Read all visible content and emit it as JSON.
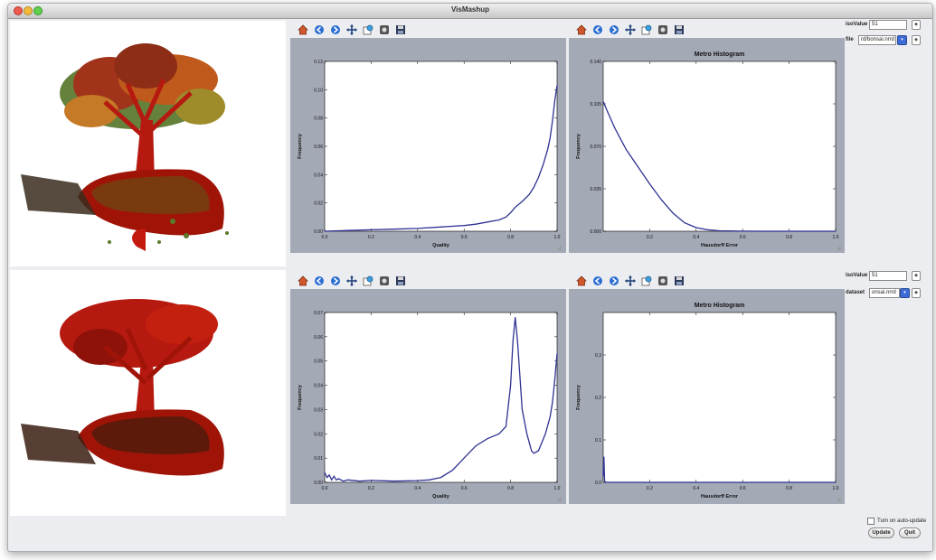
{
  "window": {
    "title": "VisMashup"
  },
  "toolbar_icons": [
    "home-icon",
    "back-icon",
    "forward-icon",
    "pan-icon",
    "zoom-icon",
    "configure-icon",
    "save-icon"
  ],
  "colors": {
    "panel_bg": "#a4a9b6",
    "curve": "#2e3192",
    "plot_bg": "#ffffff",
    "tree_red": "#b5190f"
  },
  "controls_top": {
    "isovalue_label": "isoValue",
    "isovalue_value": "51",
    "file_label": "file",
    "file_value": "rd/bonsai.nrrd"
  },
  "controls_bottom": {
    "isovalue_label": "isoValue",
    "isovalue_value": "51",
    "dataset_label": "dataset",
    "dataset_value": "onsai.nrrd"
  },
  "bottom_controls": {
    "auto_update_label": "Turn on auto-update",
    "update_button": "Update",
    "quit_button": "Quit"
  },
  "chart_data": [
    {
      "type": "line",
      "title": "",
      "xlabel": "Quality",
      "ylabel": "Frequency",
      "xlim": [
        0.0,
        1.0
      ],
      "ylim": [
        0.0,
        0.12
      ],
      "xticks": [
        "0.0",
        "0.2",
        "0.4",
        "0.6",
        "0.8",
        "1.0"
      ],
      "yticks": [
        "0.00",
        "0.02",
        "0.04",
        "0.06",
        "0.08",
        "0.10",
        "0.12"
      ],
      "x": [
        0.0,
        0.1,
        0.2,
        0.3,
        0.4,
        0.5,
        0.55,
        0.6,
        0.65,
        0.7,
        0.75,
        0.78,
        0.8,
        0.82,
        0.85,
        0.88,
        0.9,
        0.92,
        0.94,
        0.96,
        0.97,
        0.98,
        0.99,
        1.0
      ],
      "y": [
        0.0,
        0.0005,
        0.001,
        0.0015,
        0.002,
        0.003,
        0.0035,
        0.004,
        0.005,
        0.0065,
        0.008,
        0.01,
        0.013,
        0.017,
        0.021,
        0.026,
        0.031,
        0.038,
        0.047,
        0.058,
        0.066,
        0.078,
        0.092,
        0.103
      ],
      "grid": false
    },
    {
      "type": "line",
      "title": "Metro Histogram",
      "xlabel": "Hausdorff Error",
      "ylabel": "Frequency",
      "xlim": [
        0.0,
        1.0
      ],
      "ylim": [
        0.0,
        0.14
      ],
      "xticks": [
        "0.2",
        "0.4",
        "0.6",
        "0.8",
        "1.0"
      ],
      "yticks": [
        "0.000",
        "0.035",
        "0.070",
        "0.105",
        "0.140"
      ],
      "x": [
        0.0,
        0.02,
        0.05,
        0.08,
        0.1,
        0.15,
        0.2,
        0.25,
        0.3,
        0.35,
        0.4,
        0.45,
        0.5,
        0.6,
        0.7,
        0.8,
        0.9,
        1.0
      ],
      "y": [
        0.107,
        0.098,
        0.085,
        0.074,
        0.067,
        0.053,
        0.039,
        0.026,
        0.015,
        0.007,
        0.003,
        0.0012,
        0.0004,
        0.0001,
        0.0,
        0.0,
        0.0,
        0.0
      ],
      "grid": false
    },
    {
      "type": "line",
      "title": "",
      "xlabel": "Quality",
      "ylabel": "Frequency",
      "xlim": [
        0.0,
        1.0
      ],
      "ylim": [
        0.0,
        0.07
      ],
      "xticks": [
        "0.0",
        "0.2",
        "0.4",
        "0.6",
        "0.8",
        "1.0"
      ],
      "yticks": [
        "0.00",
        "0.01",
        "0.02",
        "0.03",
        "0.04",
        "0.05",
        "0.06",
        "0.07"
      ],
      "x": [
        0.0,
        0.01,
        0.02,
        0.03,
        0.04,
        0.05,
        0.06,
        0.08,
        0.1,
        0.15,
        0.2,
        0.3,
        0.4,
        0.45,
        0.5,
        0.55,
        0.6,
        0.65,
        0.7,
        0.75,
        0.78,
        0.8,
        0.81,
        0.82,
        0.83,
        0.85,
        0.87,
        0.89,
        0.9,
        0.92,
        0.95,
        0.97,
        0.98,
        0.99,
        1.0
      ],
      "y": [
        0.004,
        0.002,
        0.003,
        0.001,
        0.0025,
        0.001,
        0.0015,
        0.0005,
        0.001,
        0.0005,
        0.0008,
        0.0005,
        0.0007,
        0.001,
        0.002,
        0.005,
        0.01,
        0.015,
        0.018,
        0.02,
        0.023,
        0.04,
        0.058,
        0.068,
        0.058,
        0.03,
        0.02,
        0.013,
        0.012,
        0.013,
        0.02,
        0.027,
        0.033,
        0.042,
        0.053
      ],
      "grid": false
    },
    {
      "type": "line",
      "title": "Metro Histogram",
      "xlabel": "Hausdorff Error",
      "ylabel": "Frequency",
      "xlim": [
        0.0,
        1.0
      ],
      "ylim": [
        0.0,
        0.4
      ],
      "xticks": [
        "0.2",
        "0.4",
        "0.6",
        "0.8",
        "1.0"
      ],
      "yticks": [
        "0.0",
        "0.1",
        "0.2",
        "0.3"
      ],
      "x": [
        0.0,
        0.003,
        0.006,
        0.01,
        0.05,
        0.2,
        0.4,
        0.6,
        0.8,
        1.0
      ],
      "y": [
        0.015,
        0.06,
        0.004,
        0.0,
        0.0,
        0.0,
        0.0,
        0.0,
        0.0,
        0.0
      ],
      "grid": false
    }
  ]
}
